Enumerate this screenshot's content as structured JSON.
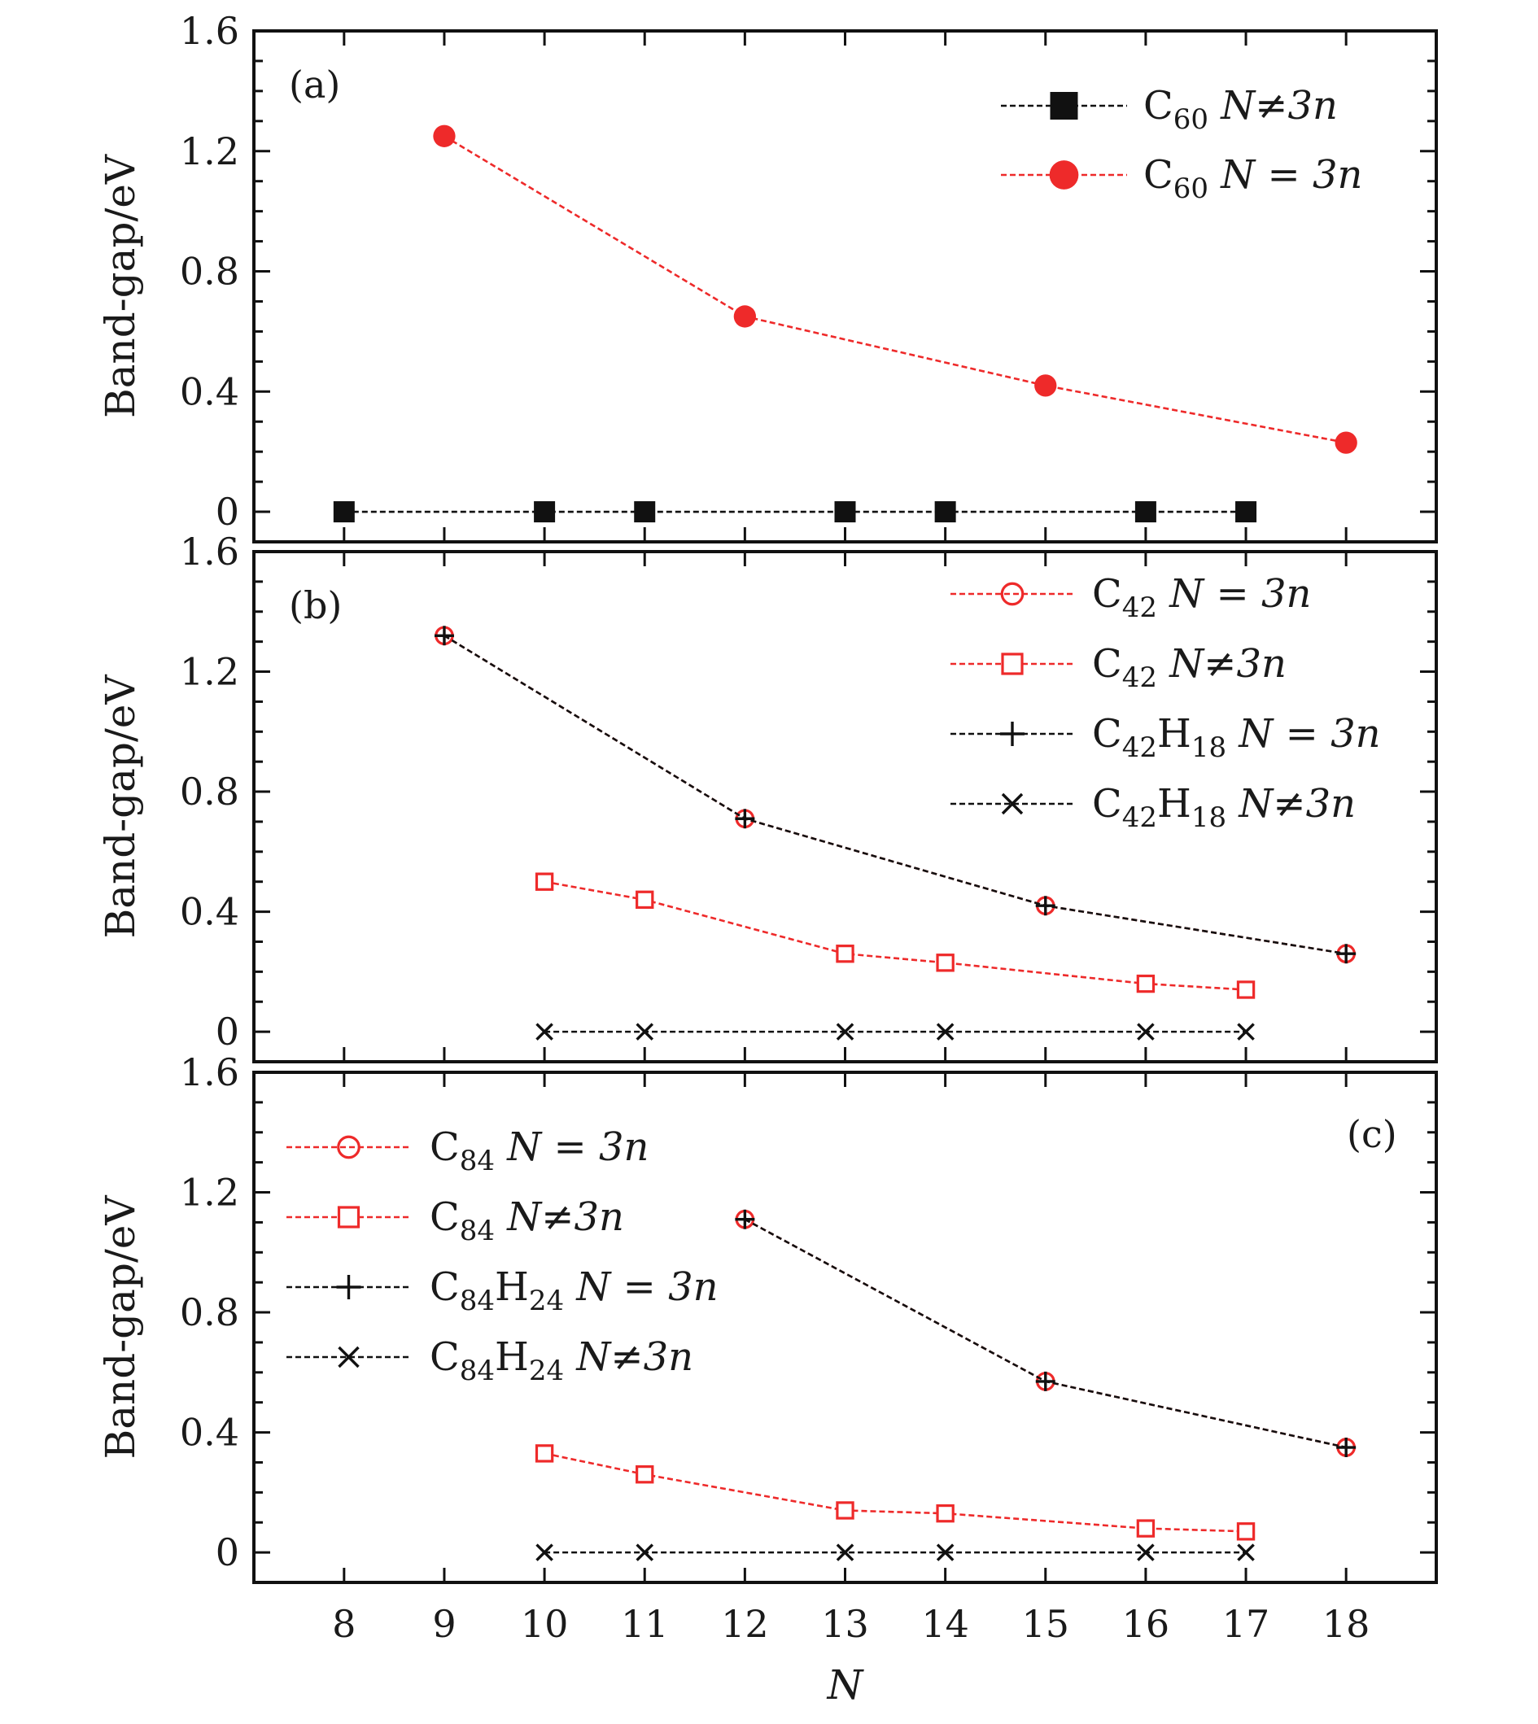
{
  "chart_data": [
    {
      "type": "line",
      "panel_label": "(a)",
      "xlabel": "N",
      "ylabel": "Band-gap/eV",
      "xlim": [
        7.1,
        18.9
      ],
      "ylim": [
        -0.1,
        1.6
      ],
      "x_ticks": [
        "8",
        "9",
        "10",
        "11",
        "12",
        "13",
        "14",
        "15",
        "16",
        "17",
        "18"
      ],
      "y_ticks": [
        "0",
        "0.4",
        "0.8",
        "1.2",
        "1.6"
      ],
      "legend_position": "top-right",
      "series": [
        {
          "name": "C60 N≠3n",
          "legend": {
            "base": "C",
            "sub1": "60",
            "mid": "",
            "sub2": "",
            "cond": "N≠3n"
          },
          "color": "#111111",
          "marker": "filled-square",
          "x": [
            8,
            10,
            11,
            13,
            14,
            16,
            17
          ],
          "y": [
            0,
            0,
            0,
            0,
            0,
            0,
            0
          ]
        },
        {
          "name": "C60 N=3n",
          "legend": {
            "base": "C",
            "sub1": "60",
            "mid": "",
            "sub2": "",
            "cond": "N = 3n"
          },
          "color": "#ee2a2a",
          "marker": "filled-circle",
          "x": [
            9,
            12,
            15,
            18
          ],
          "y": [
            1.25,
            0.65,
            0.42,
            0.23
          ]
        }
      ]
    },
    {
      "type": "line",
      "panel_label": "(b)",
      "xlabel": "N",
      "ylabel": "Band-gap/eV",
      "xlim": [
        7.1,
        18.9
      ],
      "ylim": [
        -0.1,
        1.6
      ],
      "x_ticks": [
        "8",
        "9",
        "10",
        "11",
        "12",
        "13",
        "14",
        "15",
        "16",
        "17",
        "18"
      ],
      "y_ticks": [
        "0",
        "0.4",
        "0.8",
        "1.2",
        "1.6"
      ],
      "legend_position": "top-right",
      "series": [
        {
          "name": "C42 N=3n",
          "legend": {
            "base": "C",
            "sub1": "42",
            "mid": "",
            "sub2": "",
            "cond": "N = 3n"
          },
          "color": "#ee2a2a",
          "marker": "open-circle",
          "x": [
            9,
            12,
            15,
            18
          ],
          "y": [
            1.32,
            0.71,
            0.42,
            0.26
          ]
        },
        {
          "name": "C42 N≠3n",
          "legend": {
            "base": "C",
            "sub1": "42",
            "mid": "",
            "sub2": "",
            "cond": "N≠3n"
          },
          "color": "#ee2a2a",
          "marker": "open-square",
          "x": [
            10,
            11,
            13,
            14,
            16,
            17
          ],
          "y": [
            0.5,
            0.44,
            0.26,
            0.23,
            0.16,
            0.14
          ]
        },
        {
          "name": "C42H18 N=3n",
          "legend": {
            "base": "C",
            "sub1": "42",
            "mid": "H",
            "sub2": "18",
            "cond": "N = 3n"
          },
          "color": "#111111",
          "marker": "plus",
          "x": [
            9,
            12,
            15,
            18
          ],
          "y": [
            1.32,
            0.71,
            0.42,
            0.26
          ]
        },
        {
          "name": "C42H18 N≠3n",
          "legend": {
            "base": "C",
            "sub1": "42",
            "mid": "H",
            "sub2": "18",
            "cond": "N≠3n"
          },
          "color": "#111111",
          "marker": "x",
          "x": [
            10,
            11,
            13,
            14,
            16,
            17
          ],
          "y": [
            0,
            0,
            0,
            0,
            0,
            0
          ]
        }
      ]
    },
    {
      "type": "line",
      "panel_label": "(c)",
      "xlabel": "N",
      "ylabel": "Band-gap/eV",
      "xlim": [
        7.1,
        18.9
      ],
      "ylim": [
        -0.1,
        1.6
      ],
      "x_ticks": [
        "8",
        "9",
        "10",
        "11",
        "12",
        "13",
        "14",
        "15",
        "16",
        "17",
        "18"
      ],
      "y_ticks": [
        "0",
        "0.4",
        "0.8",
        "1.2",
        "1.6"
      ],
      "legend_position": "top-left",
      "series": [
        {
          "name": "C84 N=3n",
          "legend": {
            "base": "C",
            "sub1": "84",
            "mid": "",
            "sub2": "",
            "cond": "N = 3n"
          },
          "color": "#ee2a2a",
          "marker": "open-circle",
          "x": [
            12,
            15,
            18
          ],
          "y": [
            1.11,
            0.57,
            0.35
          ]
        },
        {
          "name": "C84 N≠3n",
          "legend": {
            "base": "C",
            "sub1": "84",
            "mid": "",
            "sub2": "",
            "cond": "N≠3n"
          },
          "color": "#ee2a2a",
          "marker": "open-square",
          "x": [
            10,
            11,
            13,
            14,
            16,
            17
          ],
          "y": [
            0.33,
            0.26,
            0.14,
            0.13,
            0.08,
            0.07
          ]
        },
        {
          "name": "C84H24 N=3n",
          "legend": {
            "base": "C",
            "sub1": "84",
            "mid": "H",
            "sub2": "24",
            "cond": "N = 3n"
          },
          "color": "#111111",
          "marker": "plus",
          "x": [
            12,
            15,
            18
          ],
          "y": [
            1.11,
            0.57,
            0.35
          ]
        },
        {
          "name": "C84H24 N≠3n",
          "legend": {
            "base": "C",
            "sub1": "84",
            "mid": "H",
            "sub2": "24",
            "cond": "N≠3n"
          },
          "color": "#111111",
          "marker": "x",
          "x": [
            10,
            11,
            13,
            14,
            16,
            17
          ],
          "y": [
            0,
            0,
            0,
            0,
            0,
            0
          ]
        }
      ]
    }
  ]
}
